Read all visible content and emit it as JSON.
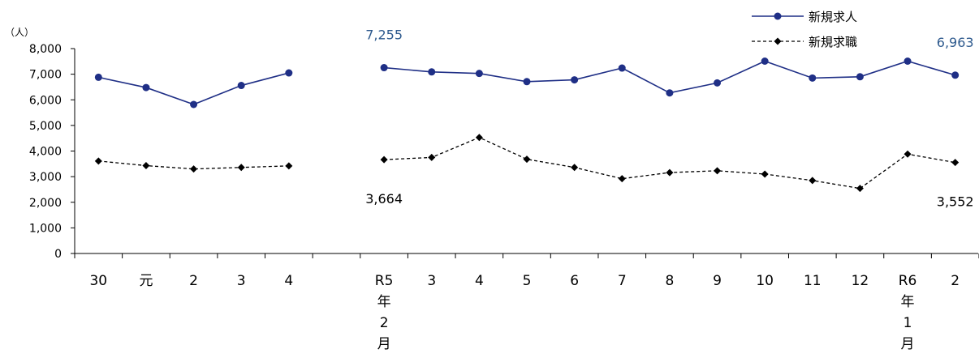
{
  "chart_data": {
    "type": "line",
    "unit_label": "（人）",
    "ylim": [
      0,
      8000
    ],
    "yticks": [
      0,
      1000,
      2000,
      3000,
      4000,
      5000,
      6000,
      7000,
      8000
    ],
    "ytick_labels": [
      "0",
      "1,000",
      "2,000",
      "3,000",
      "4,000",
      "5,000",
      "6,000",
      "7,000",
      "8,000"
    ],
    "categories": [
      "30",
      "元",
      "2",
      "3",
      "4",
      "",
      "R5年2月",
      "3",
      "4",
      "5",
      "6",
      "7",
      "8",
      "9",
      "10",
      "11",
      "12",
      "R6年1月",
      "2"
    ],
    "category_label_lines": [
      [
        "30"
      ],
      [
        "元"
      ],
      [
        "2"
      ],
      [
        "3"
      ],
      [
        "4"
      ],
      [
        ""
      ],
      [
        "R5",
        "年",
        "2",
        "月"
      ],
      [
        "3"
      ],
      [
        "4"
      ],
      [
        "5"
      ],
      [
        "6"
      ],
      [
        "7"
      ],
      [
        "8"
      ],
      [
        "9"
      ],
      [
        "10"
      ],
      [
        "11"
      ],
      [
        "12"
      ],
      [
        "R6",
        "年",
        "1",
        "月"
      ],
      [
        "2"
      ]
    ],
    "series": [
      {
        "name": "新規求人",
        "color": "#1f2f86",
        "marker": "circle",
        "dash": "solid",
        "values": [
          6880,
          6480,
          5820,
          6560,
          7050,
          null,
          7255,
          7090,
          7030,
          6710,
          6780,
          7240,
          6270,
          6660,
          7510,
          6850,
          6900,
          7510,
          6963
        ]
      },
      {
        "name": "新規求職",
        "color": "#000000",
        "marker": "diamond",
        "dash": "dashed",
        "values": [
          3610,
          3430,
          3300,
          3360,
          3420,
          null,
          3664,
          3750,
          4530,
          3680,
          3360,
          2920,
          3160,
          3230,
          3100,
          2850,
          2540,
          3880,
          3552
        ]
      }
    ],
    "annotations": [
      {
        "text": "7,255",
        "series": 0,
        "index": 6,
        "color": "#2e5a8e"
      },
      {
        "text": "6,963",
        "series": 0,
        "index": 18,
        "color": "#2e5a8e"
      },
      {
        "text": "3,664",
        "series": 1,
        "index": 6,
        "color": "#000000"
      },
      {
        "text": "3,552",
        "series": 1,
        "index": 18,
        "color": "#000000"
      }
    ],
    "legend": {
      "placement": "top-right"
    },
    "grid": false
  }
}
